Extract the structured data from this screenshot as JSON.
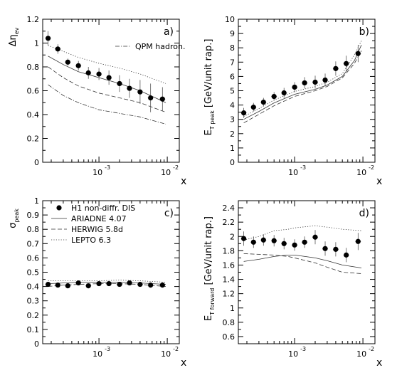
{
  "chart_data": [
    {
      "panel_label": "a)",
      "type": "scatter",
      "ylabel_sym": "Δη",
      "ylabel_sub": "ev",
      "xlabel": "x",
      "xscale": "log",
      "xlim": [
        0.00015,
        0.015
      ],
      "ylim": [
        0,
        1.2
      ],
      "yticks": [
        0,
        0.2,
        0.4,
        0.6,
        0.8,
        1,
        1.2
      ],
      "legend": [
        {
          "style": "dashdot",
          "label": "QPM hadron."
        }
      ],
      "points": {
        "x": [
          0.00018,
          0.00025,
          0.00035,
          0.0005,
          0.0007,
          0.001,
          0.0014,
          0.002,
          0.0028,
          0.004,
          0.0057,
          0.0085
        ],
        "y": [
          1.04,
          0.95,
          0.84,
          0.81,
          0.75,
          0.74,
          0.71,
          0.66,
          0.62,
          0.59,
          0.54,
          0.53
        ],
        "err": [
          0.06,
          0.04,
          0.03,
          0.04,
          0.05,
          0.05,
          0.06,
          0.07,
          0.08,
          0.1,
          0.12,
          0.1
        ]
      },
      "curves": [
        {
          "style": "dotted",
          "x": [
            0.00018,
            0.0003,
            0.0005,
            0.001,
            0.002,
            0.004,
            0.0095
          ],
          "y": [
            0.98,
            0.93,
            0.88,
            0.83,
            0.79,
            0.74,
            0.66
          ]
        },
        {
          "style": "solid",
          "x": [
            0.00018,
            0.0003,
            0.0005,
            0.001,
            0.002,
            0.004,
            0.0095
          ],
          "y": [
            0.89,
            0.82,
            0.76,
            0.71,
            0.66,
            0.6,
            0.5
          ]
        },
        {
          "style": "dashed",
          "x": [
            0.00018,
            0.0003,
            0.0005,
            0.001,
            0.002,
            0.004,
            0.0095
          ],
          "y": [
            0.8,
            0.71,
            0.64,
            0.58,
            0.54,
            0.5,
            0.42
          ]
        },
        {
          "style": "dashdot",
          "x": [
            0.00018,
            0.0003,
            0.0005,
            0.001,
            0.002,
            0.004,
            0.0095
          ],
          "y": [
            0.65,
            0.56,
            0.5,
            0.44,
            0.41,
            0.38,
            0.32
          ]
        }
      ]
    },
    {
      "panel_label": "b)",
      "type": "scatter",
      "ylabel_main": "E",
      "ylabel_sub": "T peak",
      "ylabel_rest": "[GeV/unit rap.]",
      "xlabel": "x",
      "xscale": "log",
      "xlim": [
        0.00015,
        0.015
      ],
      "ylim": [
        0,
        10
      ],
      "yticks": [
        0,
        1,
        2,
        3,
        4,
        5,
        6,
        7,
        8,
        9,
        10
      ],
      "legend": [],
      "points": {
        "x": [
          0.00018,
          0.00025,
          0.00035,
          0.0005,
          0.0007,
          0.001,
          0.0014,
          0.002,
          0.0028,
          0.004,
          0.0057,
          0.0085
        ],
        "y": [
          3.45,
          3.85,
          4.2,
          4.6,
          4.85,
          5.25,
          5.55,
          5.6,
          5.75,
          6.55,
          6.9,
          7.6
        ],
        "err": [
          0.35,
          0.3,
          0.3,
          0.3,
          0.35,
          0.35,
          0.4,
          0.45,
          0.45,
          0.5,
          0.55,
          0.6
        ]
      },
      "curves": [
        {
          "style": "dotted",
          "x": [
            0.00018,
            0.0003,
            0.0005,
            0.001,
            0.002,
            0.003,
            0.005,
            0.0075,
            0.0095
          ],
          "y": [
            3.2,
            3.75,
            4.35,
            4.95,
            5.3,
            5.6,
            6.2,
            7.5,
            8.5
          ]
        },
        {
          "style": "solid",
          "x": [
            0.00018,
            0.0003,
            0.0005,
            0.001,
            0.002,
            0.003,
            0.005,
            0.0075,
            0.0095
          ],
          "y": [
            3.0,
            3.55,
            4.15,
            4.75,
            5.1,
            5.4,
            6.0,
            7.1,
            8.2
          ]
        },
        {
          "style": "dashed",
          "x": [
            0.00018,
            0.0003,
            0.0005,
            0.001,
            0.002,
            0.003,
            0.005,
            0.0075,
            0.0095
          ],
          "y": [
            2.75,
            3.35,
            3.95,
            4.6,
            5.0,
            5.3,
            5.9,
            6.9,
            7.8
          ]
        }
      ]
    },
    {
      "panel_label": "c)",
      "type": "scatter",
      "ylabel_main": "σ",
      "ylabel_sub": "peak",
      "xlabel": "x",
      "xscale": "log",
      "xlim": [
        0.00015,
        0.015
      ],
      "ylim": [
        0,
        1
      ],
      "yticks": [
        0,
        0.1,
        0.2,
        0.3,
        0.4,
        0.5,
        0.6,
        0.7,
        0.8,
        0.9,
        1
      ],
      "legend": [
        {
          "style": "marker",
          "label": "H1 non-diffr. DIS"
        },
        {
          "style": "solid",
          "label": "ARIADNE 4.07"
        },
        {
          "style": "dashed",
          "label": "HERWIG 5.8d"
        },
        {
          "style": "dotted",
          "label": "LEPTO 6.3"
        }
      ],
      "points": {
        "x": [
          0.00018,
          0.00025,
          0.00035,
          0.0005,
          0.0007,
          0.001,
          0.0014,
          0.002,
          0.0028,
          0.004,
          0.0057,
          0.0085
        ],
        "y": [
          0.415,
          0.41,
          0.405,
          0.425,
          0.405,
          0.42,
          0.42,
          0.415,
          0.425,
          0.415,
          0.41,
          0.41
        ],
        "err": [
          0.015,
          0.015,
          0.015,
          0.015,
          0.015,
          0.015,
          0.015,
          0.015,
          0.015,
          0.015,
          0.015,
          0.015
        ]
      },
      "curves": [
        {
          "style": "dotted",
          "x": [
            0.00018,
            0.0003,
            0.0005,
            0.001,
            0.002,
            0.004,
            0.0095
          ],
          "y": [
            0.44,
            0.44,
            0.44,
            0.44,
            0.445,
            0.44,
            0.43
          ]
        },
        {
          "style": "solid",
          "x": [
            0.00018,
            0.0003,
            0.0005,
            0.001,
            0.002,
            0.004,
            0.0095
          ],
          "y": [
            0.42,
            0.425,
            0.43,
            0.43,
            0.43,
            0.425,
            0.415
          ]
        },
        {
          "style": "dashed",
          "x": [
            0.00018,
            0.0003,
            0.0005,
            0.001,
            0.002,
            0.004,
            0.0095
          ],
          "y": [
            0.4,
            0.41,
            0.415,
            0.42,
            0.42,
            0.415,
            0.4
          ]
        }
      ]
    },
    {
      "panel_label": "d)",
      "type": "scatter",
      "ylabel_main": "E",
      "ylabel_sub": "T forward",
      "ylabel_rest": "[GeV/unit rap.]",
      "xlabel": "x",
      "xscale": "log",
      "xlim": [
        0.00015,
        0.015
      ],
      "ylim": [
        0.5,
        2.5
      ],
      "yticks": [
        0.6,
        0.8,
        1,
        1.2,
        1.4,
        1.6,
        1.8,
        2,
        2.2,
        2.4
      ],
      "legend": [],
      "points": {
        "x": [
          0.00018,
          0.00025,
          0.00035,
          0.0005,
          0.0007,
          0.001,
          0.0014,
          0.002,
          0.0028,
          0.004,
          0.0057,
          0.0085
        ],
        "y": [
          1.97,
          1.92,
          1.95,
          1.94,
          1.9,
          1.88,
          1.92,
          1.99,
          1.83,
          1.82,
          1.74,
          1.93
        ],
        "err": [
          0.1,
          0.08,
          0.08,
          0.08,
          0.08,
          0.08,
          0.08,
          0.1,
          0.1,
          0.1,
          0.1,
          0.12
        ]
      },
      "curves": [
        {
          "style": "dotted",
          "x": [
            0.00018,
            0.0003,
            0.0005,
            0.0008,
            0.001,
            0.002,
            0.003,
            0.005,
            0.0095
          ],
          "y": [
            1.95,
            2.0,
            2.08,
            2.1,
            2.12,
            2.15,
            2.13,
            2.1,
            2.08
          ]
        },
        {
          "style": "solid",
          "x": [
            0.00018,
            0.0003,
            0.0005,
            0.0008,
            0.001,
            0.002,
            0.003,
            0.005,
            0.0095
          ],
          "y": [
            1.65,
            1.68,
            1.72,
            1.74,
            1.74,
            1.7,
            1.66,
            1.6,
            1.56
          ]
        },
        {
          "style": "dashed",
          "x": [
            0.00018,
            0.0003,
            0.0005,
            0.0008,
            0.001,
            0.002,
            0.003,
            0.005,
            0.0095
          ],
          "y": [
            1.76,
            1.75,
            1.74,
            1.72,
            1.7,
            1.63,
            1.57,
            1.5,
            1.48
          ]
        }
      ]
    }
  ]
}
